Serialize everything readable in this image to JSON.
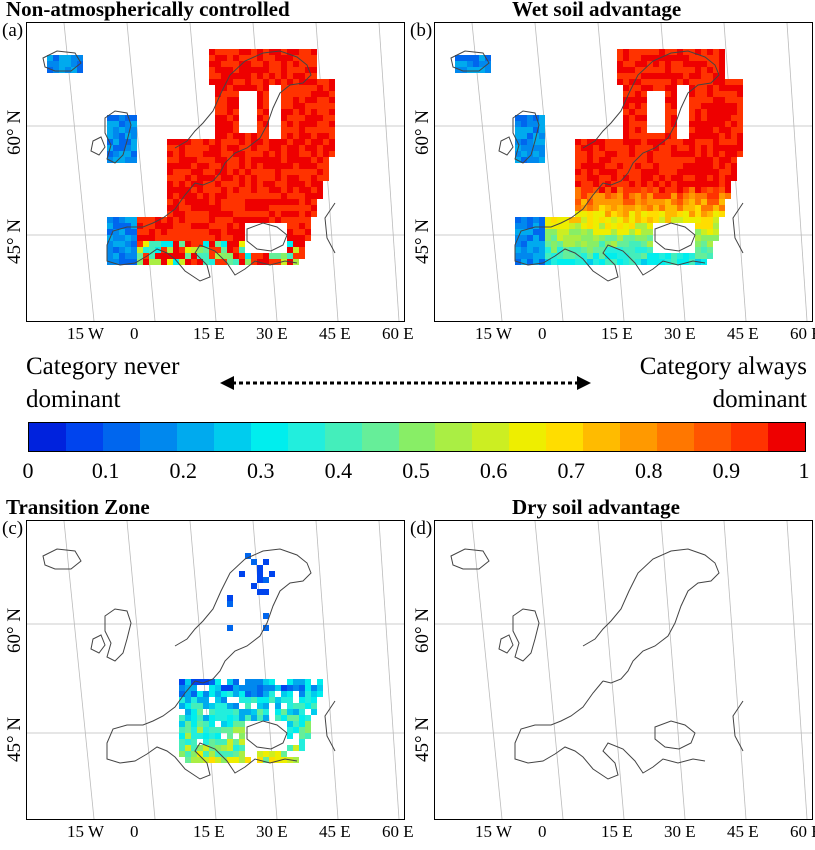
{
  "panels": [
    {
      "letter": "(a)",
      "title": "Non-atmospherically controlled",
      "pattern": "non_atmo"
    },
    {
      "letter": "(b)",
      "title": "Wet soil advantage",
      "pattern": "wet"
    },
    {
      "letter": "(c)",
      "title": "Transition Zone",
      "pattern": "transition"
    },
    {
      "letter": "(d)",
      "title": "Dry soil advantage",
      "pattern": "dry"
    }
  ],
  "axes": {
    "lat_labels": [
      "60° N",
      "45° N"
    ],
    "lon_labels": [
      "15 W",
      "0",
      "15 E",
      "30 E",
      "45 E",
      "60 E"
    ]
  },
  "legend": {
    "left_text_line1": "Category never",
    "left_text_line2": "dominant",
    "right_text_line1": "Category always",
    "right_text_line2": "dominant",
    "colorbar_ticks": [
      "0",
      "0.1",
      "0.2",
      "0.3",
      "0.4",
      "0.5",
      "0.6",
      "0.7",
      "0.8",
      "0.9",
      "1"
    ],
    "colorbar_colors": [
      "#0022dd",
      "#0044ee",
      "#0066ee",
      "#0088ee",
      "#00aaee",
      "#00ccee",
      "#00eeee",
      "#22eedd",
      "#44eebb",
      "#66ee99",
      "#88ee66",
      "#aaee44",
      "#ccee22",
      "#eeee00",
      "#ffdd00",
      "#ffbb00",
      "#ff9900",
      "#ff7700",
      "#ff5500",
      "#ff3300",
      "#ee0000"
    ]
  }
}
